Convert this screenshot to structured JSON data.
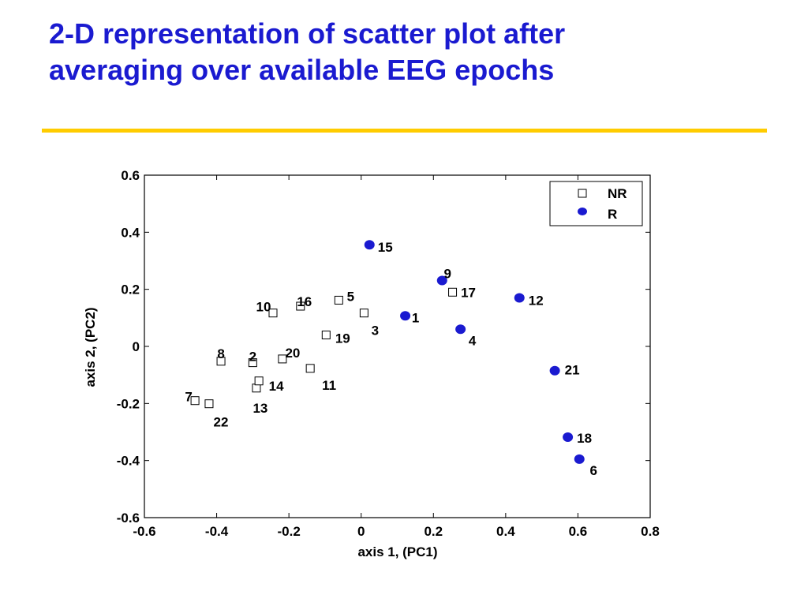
{
  "slide": {
    "title_line1": "2-D representation of scatter plot after",
    "title_line2": "averaging over available EEG epochs",
    "title_color": "#1a1ad0",
    "divider_color": "#ffcc00"
  },
  "chart_data": {
    "type": "scatter",
    "title": "",
    "xlabel": "axis 1, (PC1)",
    "ylabel": "axis 2, (PC2)",
    "xlim": [
      -0.6,
      0.8
    ],
    "ylim": [
      -0.6,
      0.6
    ],
    "xticks": [
      "-0.6",
      "-0.4",
      "-0.2",
      "0",
      "0.2",
      "0.4",
      "0.6",
      "0.8"
    ],
    "yticks": [
      "0.6",
      "0.4",
      "0.2",
      "0",
      "-0.2",
      "-0.4",
      "-0.6"
    ],
    "grid": false,
    "legend_position": "top-right",
    "series": [
      {
        "name": "NR",
        "marker": "open-square",
        "color": "#000000",
        "points": [
          {
            "label": "2",
            "x": -0.3,
            "y": -0.057
          },
          {
            "label": "3",
            "x": 0.008,
            "y": 0.117
          },
          {
            "label": "5",
            "x": -0.062,
            "y": 0.162
          },
          {
            "label": "7",
            "x": -0.46,
            "y": -0.19
          },
          {
            "label": "8",
            "x": -0.388,
            "y": -0.052
          },
          {
            "label": "10",
            "x": -0.244,
            "y": 0.117
          },
          {
            "label": "11",
            "x": -0.141,
            "y": -0.077
          },
          {
            "label": "13",
            "x": -0.29,
            "y": -0.146
          },
          {
            "label": "14",
            "x": -0.283,
            "y": -0.121
          },
          {
            "label": "16",
            "x": -0.168,
            "y": 0.141
          },
          {
            "label": "17",
            "x": 0.253,
            "y": 0.19
          },
          {
            "label": "19",
            "x": -0.097,
            "y": 0.04
          },
          {
            "label": "20",
            "x": -0.218,
            "y": -0.044
          },
          {
            "label": "22",
            "x": -0.421,
            "y": -0.201
          }
        ]
      },
      {
        "name": "R",
        "marker": "filled-circle",
        "color": "#1a1ad0",
        "points": [
          {
            "label": "1",
            "x": 0.122,
            "y": 0.107
          },
          {
            "label": "4",
            "x": 0.275,
            "y": 0.06
          },
          {
            "label": "6",
            "x": 0.604,
            "y": -0.395
          },
          {
            "label": "9",
            "x": 0.224,
            "y": 0.231
          },
          {
            "label": "12",
            "x": 0.438,
            "y": 0.17
          },
          {
            "label": "15",
            "x": 0.023,
            "y": 0.356
          },
          {
            "label": "18",
            "x": 0.572,
            "y": -0.318
          },
          {
            "label": "21",
            "x": 0.536,
            "y": -0.085
          }
        ]
      }
    ]
  }
}
